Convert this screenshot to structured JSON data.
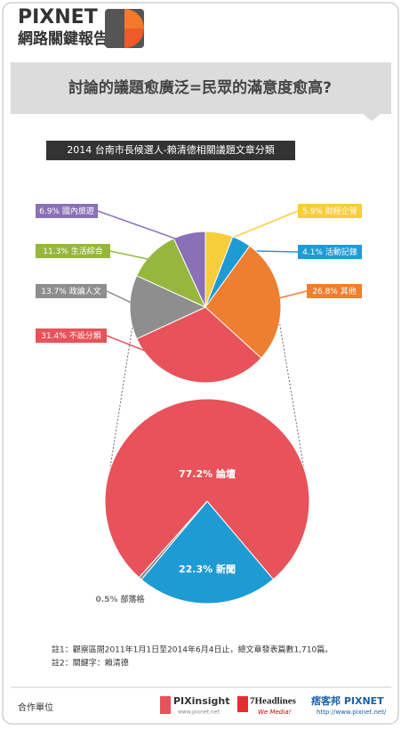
{
  "header": {
    "brand": "PIXNET",
    "subbrand": "網路關鍵報告"
  },
  "title": "討論的議題愈廣泛=民眾的滿意度愈高?",
  "subtitle": "2014 台南市長候選人-賴清德相關議題文章分類",
  "chart_data": [
    {
      "type": "pie",
      "categories": [
        "財經企管",
        "活動記錄",
        "其他",
        "不設分類",
        "政論人文",
        "生活綜合",
        "國內旅遊"
      ],
      "values": [
        5.9,
        4.1,
        26.8,
        31.4,
        13.7,
        11.3,
        6.9
      ],
      "value_labels": [
        "5.9%",
        "4.1%",
        "26.8%",
        "31.4%",
        "13.7%",
        "11.3%",
        "6.9%"
      ],
      "colors": [
        "#f8cd3b",
        "#1f9bd4",
        "#ee7f30",
        "#e8525a",
        "#8e8e8e",
        "#97b63d",
        "#8a70b6"
      ]
    },
    {
      "type": "pie",
      "categories": [
        "論壇",
        "新聞",
        "部落格"
      ],
      "values": [
        77.2,
        22.3,
        0.5
      ],
      "value_labels": [
        "77.2%",
        "22.3%",
        "0.5%"
      ],
      "colors": [
        "#e8525a",
        "#1f9bd4",
        "#8e8e8e"
      ]
    }
  ],
  "notes": [
    "註1：觀察區間2011年1月1日至2014年6月4日止，總文章發表篇數1,710篇。",
    "註2：關鍵字：賴清德"
  ],
  "footer": {
    "label": "合作單位",
    "logo1": "PIXinsight",
    "logo1_url": "www.pixnet.net",
    "logo2": "7Headlines",
    "logo2_tag": "We Media!",
    "logo3": "痞客邦 PIXNET",
    "logo3_url": "http://www.pixnet.net/"
  }
}
